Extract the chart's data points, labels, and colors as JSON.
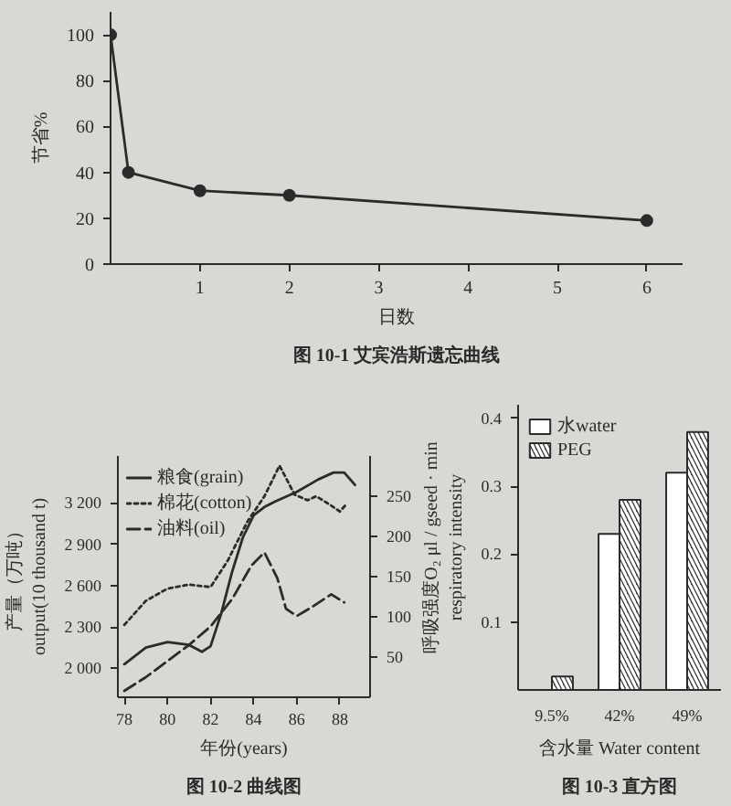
{
  "chart_data": [
    {
      "type": "line",
      "title": "图 10-1 艾宾浩斯遗忘曲线",
      "xlabel": "日数",
      "ylabel": "节省%",
      "x": [
        0,
        0.2,
        1,
        2,
        6
      ],
      "values": [
        100,
        40,
        32,
        30,
        19
      ],
      "color": "#2b2b2b",
      "marker": "circle",
      "xlim": [
        0,
        6.4
      ],
      "ylim": [
        0,
        110
      ],
      "xticks": [
        1,
        2,
        3,
        4,
        5,
        6
      ],
      "yticks": [
        0,
        20,
        40,
        60,
        80,
        100
      ]
    },
    {
      "type": "line",
      "title": "图 10-2 曲线图",
      "xlabel": "年份(years)",
      "ylabel": "产量（万吨）\noutput(10 thousand t)",
      "series": [
        {
          "name": "粮食(grain)",
          "color": "#2b2b2b",
          "line_style": "solid",
          "x": [
            78,
            79,
            80,
            81,
            81.6,
            82,
            82.5,
            83,
            83.5,
            84,
            84.5,
            85,
            86,
            87,
            87.7,
            88.2,
            88.7
          ],
          "values": [
            2030,
            2150,
            2190,
            2170,
            2120,
            2160,
            2400,
            2700,
            2950,
            3110,
            3170,
            3210,
            3280,
            3370,
            3420,
            3420,
            3330
          ]
        },
        {
          "name": "棉花(cotton)",
          "color": "#2b2b2b",
          "line_style": "dotted",
          "axis": "y2",
          "x": [
            78,
            79,
            80,
            81,
            82,
            82.8,
            83.7,
            84.5,
            85.2,
            85.9,
            86.5,
            86.9,
            87.5,
            88,
            88.3
          ],
          "values": [
            90,
            120,
            135,
            140,
            137,
            170,
            218,
            250,
            288,
            252,
            245,
            250,
            240,
            231,
            240
          ]
        },
        {
          "name": "油料(oil)",
          "color": "#2b2b2b",
          "line_style": "dashed",
          "axis": "y2",
          "x": [
            78,
            79,
            80,
            81,
            82,
            83,
            83.9,
            84.5,
            85.1,
            85.5,
            86,
            86.7,
            87.6,
            88.2
          ],
          "values": [
            8,
            25,
            45,
            65,
            88,
            122,
            164,
            180,
            148,
            110,
            101,
            112,
            128,
            118
          ]
        }
      ],
      "xlim": [
        77.7,
        89.4
      ],
      "xticks": [
        78,
        80,
        82,
        84,
        86,
        88
      ],
      "ylim": [
        1790,
        3540
      ],
      "yticks": [
        {
          "value": 2000,
          "label": "2 000"
        },
        {
          "value": 2300,
          "label": "2 300"
        },
        {
          "value": 2600,
          "label": "2 600"
        },
        {
          "value": 2900,
          "label": "2 900"
        },
        {
          "value": 3200,
          "label": "3 200"
        }
      ],
      "y2lim": [
        0,
        300
      ],
      "y2ticks": [
        50,
        100,
        150,
        200,
        250
      ],
      "legend": "top left"
    },
    {
      "type": "bar",
      "title": "图 10-3 直方图",
      "xlabel": "含水量 Water content",
      "ylabel": "呼吸强度O₂ μl / gseed · min\nrespiratory intensity",
      "categories": [
        "9.5%",
        "42%",
        "49%"
      ],
      "series": [
        {
          "name": "水water",
          "color": "#ffffff",
          "values": [
            null,
            0.23,
            0.32
          ]
        },
        {
          "name": "PEG",
          "color": "#3a3a3a",
          "values": [
            0.02,
            0.28,
            0.38
          ]
        }
      ],
      "ylim": [
        0,
        0.42
      ],
      "yticks": [
        0.1,
        0.2,
        0.3,
        0.4
      ],
      "legend": "top left"
    }
  ]
}
